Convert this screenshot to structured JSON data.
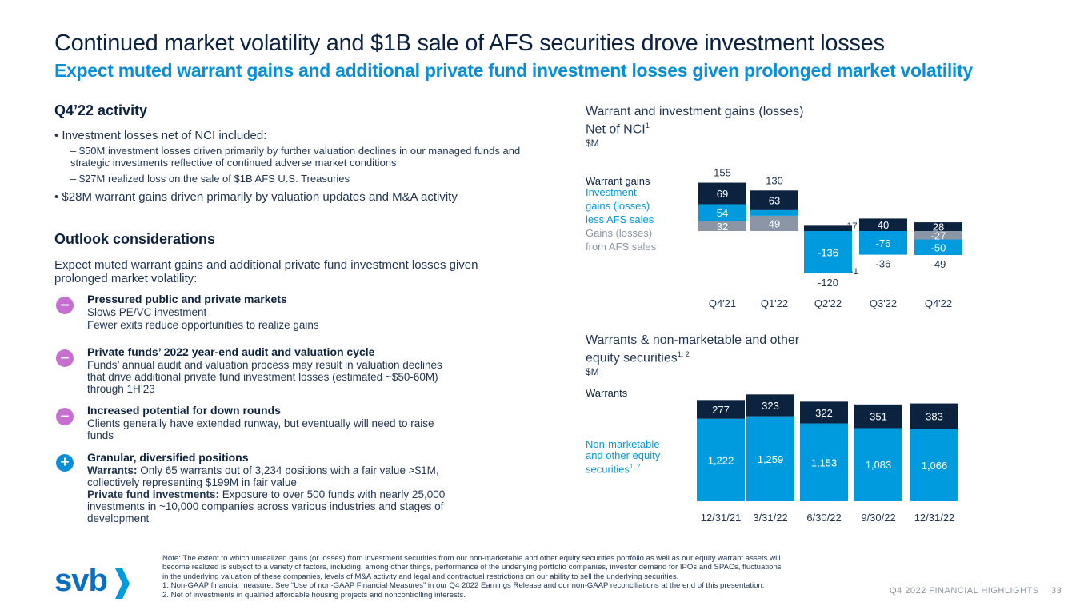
{
  "header": {
    "title": "Continued market volatility and $1B sale of AFS securities drove investment losses",
    "subtitle": "Expect muted warrant gains and additional private fund investment losses given prolonged market volatility"
  },
  "left": {
    "activity_heading": "Q4’22 activity",
    "bullet1": "• Investment losses net of NCI included:",
    "sub1": "– $50M investment losses driven primarily by further valuation declines in our managed funds and strategic investments reflective of continued adverse market conditions",
    "sub2": "– $27M realized loss on the sale of $1B AFS U.S. Treasuries",
    "bullet2": "• $28M warrant gains driven primarily by valuation updates and M&A activity",
    "outlook_heading": "Outlook considerations",
    "outlook_intro": "Expect muted warrant gains and additional private fund investment losses given prolonged market volatility:",
    "items": [
      {
        "sign": "–",
        "title": "Pressured public and private markets",
        "lines": [
          "Slows PE/VC investment",
          "Fewer exits reduce opportunities to realize gains"
        ]
      },
      {
        "sign": "–",
        "title": "Private funds’ 2022 year-end audit and valuation cycle",
        "lines": [
          "Funds’ annual audit and valuation process may result in valuation declines",
          "that drive additional private fund investment losses (estimated ~$50-60M)",
          "through 1H’23"
        ]
      },
      {
        "sign": "–",
        "title": "Increased potential for down rounds",
        "lines": [
          "Clients generally have extended runway, but eventually will need to raise",
          "funds"
        ]
      },
      {
        "sign": "+",
        "title": "Granular, diversified positions",
        "bold1": "Warrants:",
        "line1": " Only 65 warrants out of 3,234 positions with a fair value >$1M,",
        "line2": "collectively representing $199M in fair value",
        "bold3": "Private fund investments:",
        "line3": " Exposure to over 500 funds with nearly 25,000",
        "line4": "investments in ~10,000 companies across various industries and stages of",
        "line5": "development"
      }
    ]
  },
  "colors": {
    "navy": "#0c2340",
    "blue": "#009bdf",
    "gray": "#8a95a5",
    "minus": "#c66fd1",
    "plus": "#0a8fd6"
  },
  "chart_data": [
    {
      "type": "bar",
      "title": "Warrant and investment gains (losses)",
      "subtitle": "Net of NCI",
      "subtitle_sup": "1",
      "unit": "$M",
      "categories": [
        "Q4'21",
        "Q1'22",
        "Q2'22",
        "Q3'22",
        "Q4'22"
      ],
      "series": [
        {
          "name": "Warrant gains",
          "values": [
            69,
            63,
            17,
            40,
            28
          ]
        },
        {
          "name": "Investment gains (losses) less AFS sales",
          "values": [
            54,
            18,
            -136,
            -76,
            -50
          ]
        },
        {
          "name": "Gains (losses) from AFS sales",
          "values": [
            32,
            49,
            0,
            0,
            -27
          ]
        }
      ],
      "totals": [
        155,
        130,
        -120,
        -36,
        -49
      ],
      "extra_labels": [
        "-1"
      ],
      "legend_lines": {
        "warrant": "Warrant gains",
        "investment": [
          "Investment",
          "gains (losses)",
          "less AFS sales"
        ],
        "afs": [
          "Gains (losses)",
          "from AFS sales"
        ]
      }
    },
    {
      "type": "bar",
      "title": "Warrants & non-marketable and other",
      "title2": "equity securities",
      "title_sup": "1, 2",
      "unit": "$M",
      "categories": [
        "12/31/21",
        "3/31/22",
        "6/30/22",
        "9/30/22",
        "12/31/22"
      ],
      "series": [
        {
          "name": "Warrants",
          "values": [
            277,
            323,
            322,
            351,
            383
          ]
        },
        {
          "name": "Non-marketable and other equity securities",
          "values": [
            1222,
            1259,
            1153,
            1083,
            1066
          ]
        }
      ],
      "value_labels": {
        "warrants": [
          "277",
          "323",
          "322",
          "351",
          "383"
        ],
        "nonmarketable": [
          "1,222",
          "1,259",
          "1,153",
          "1,083",
          "1,066"
        ]
      },
      "legend_lines": {
        "warrants": "Warrants",
        "nonmarketable": [
          "Non-marketable",
          "and other equity",
          "securities"
        ],
        "nonmarketable_sup": "1, 2"
      }
    }
  ],
  "note": {
    "lines": [
      "Note: The extent to which unrealized gains (or losses) from investment securities from our non-marketable and other equity securities portfolio as well as our equity warrant assets will",
      "become realized is subject to a variety of factors, including, among other things, performance of the underlying portfolio companies, investor demand for IPOs and SPACs, fluctuations",
      "in the underlying valuation of these companies, levels of M&A activity and legal and contractual restrictions on our ability to sell the underlying securities.",
      "1.  Non-GAAP financial measure. See “Use of non-GAAP Financial Measures” in our Q4 2022 Earnings Release and our non-GAAP reconciliations at the end of this presentation.",
      "2.  Net of investments in qualified affordable housing projects and noncontrolling interests."
    ]
  },
  "footer": {
    "logo_text": "svb",
    "label": "Q4 2022 FINANCIAL HIGHLIGHTS",
    "page": "33"
  }
}
